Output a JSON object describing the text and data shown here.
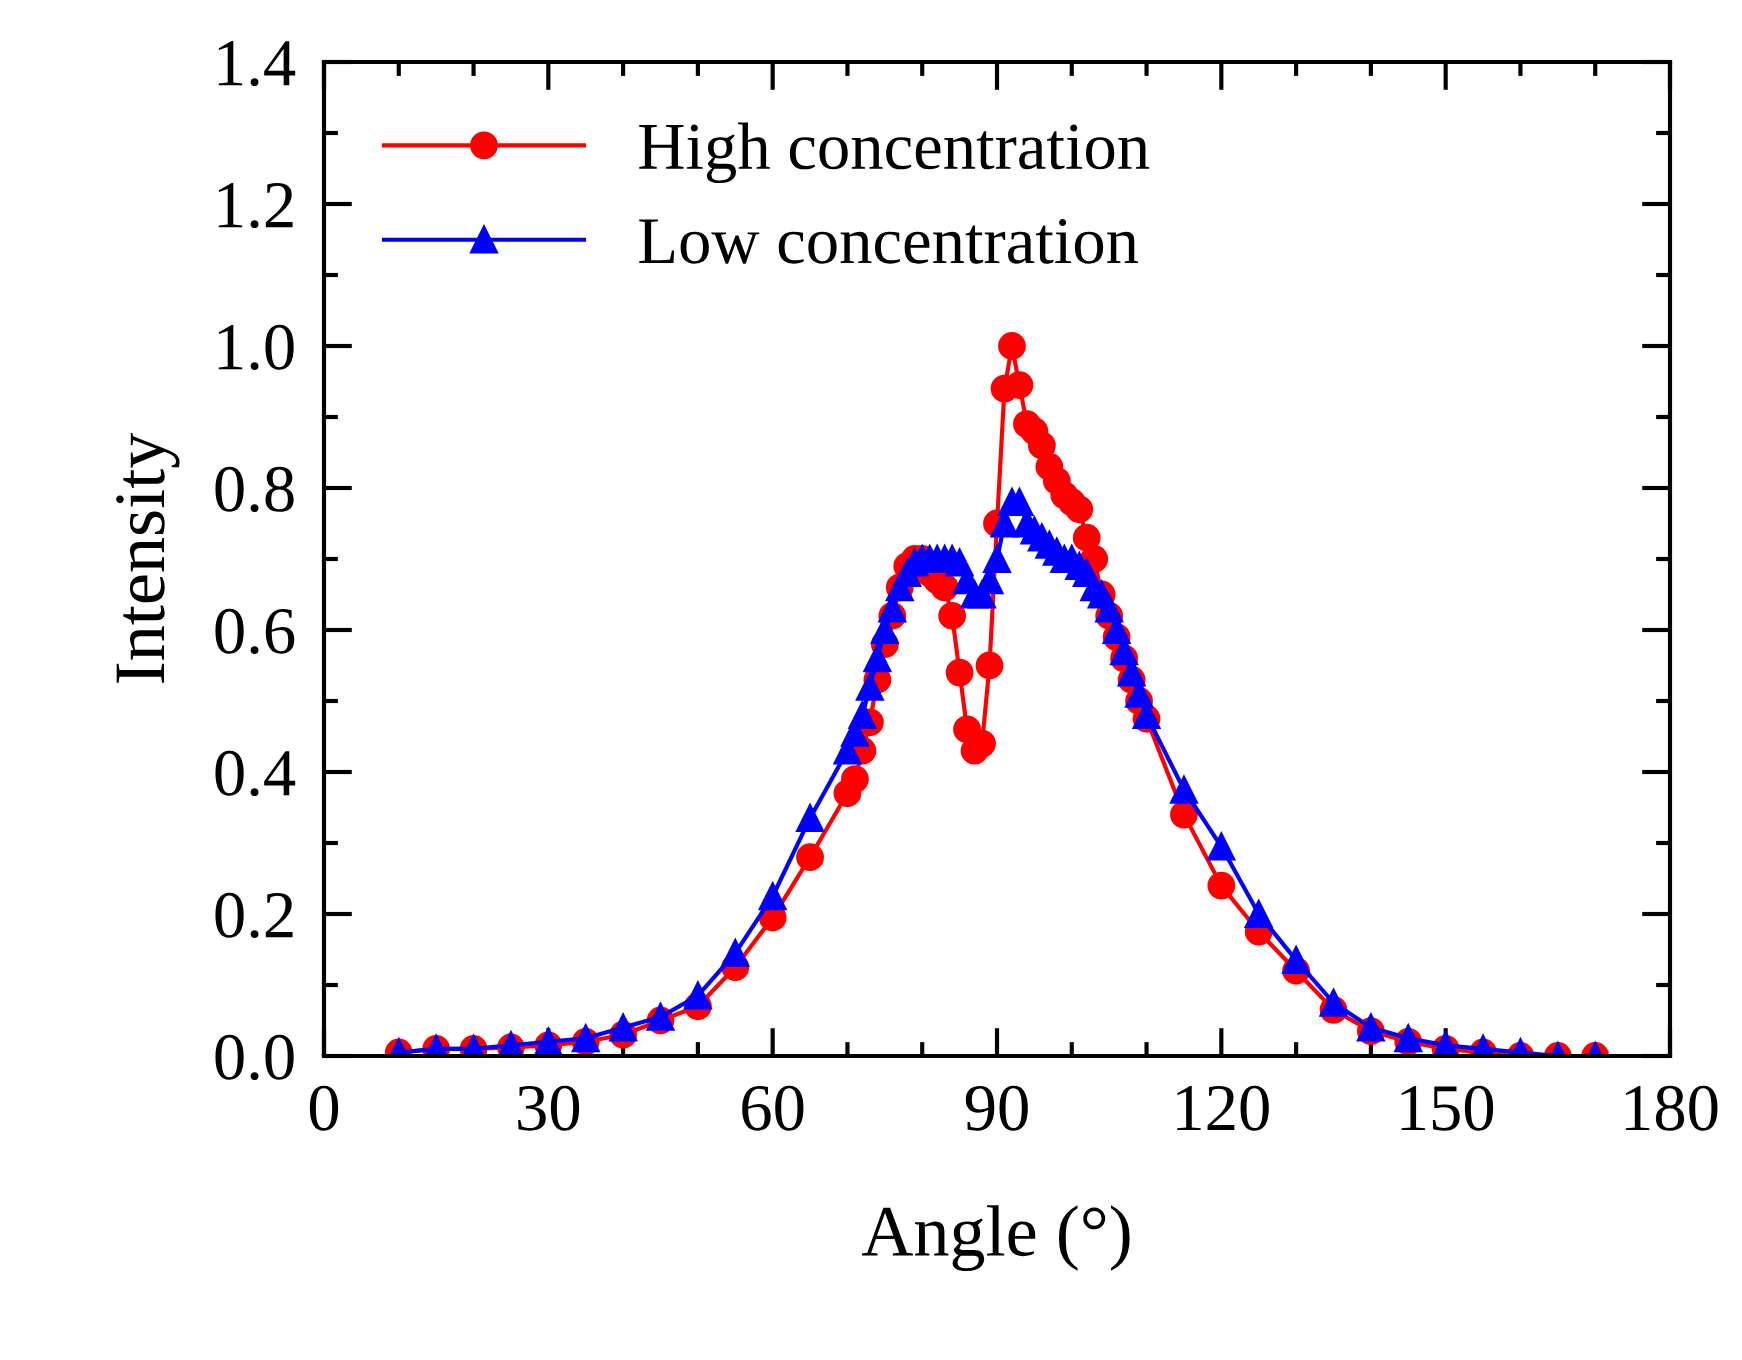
{
  "chart_data": {
    "type": "line",
    "xlabel": "Angle (°)",
    "ylabel": "Intensity",
    "xlim": [
      0,
      180
    ],
    "xticks": [
      0,
      30,
      60,
      90,
      120,
      150,
      180
    ],
    "ylim": [
      0,
      1.4
    ],
    "yticks": [
      {
        "value": 0,
        "label": "0.0"
      },
      0.2,
      0.4,
      0.6,
      0.8,
      {
        "value": 1,
        "label": "1.0"
      },
      1.2,
      1.4
    ],
    "legend": "top left",
    "grid": false,
    "line_style": "solid",
    "x": [
      10,
      15,
      20,
      25,
      30,
      35,
      40,
      45,
      50,
      55,
      60,
      65,
      70,
      71,
      72,
      73,
      74,
      75,
      76,
      77,
      78,
      79,
      80,
      81,
      82,
      83,
      84,
      85,
      86,
      87,
      88,
      89,
      90,
      91,
      92,
      93,
      94,
      95,
      96,
      97,
      98,
      99,
      100,
      101,
      102,
      103,
      104,
      105,
      106,
      107,
      108,
      109,
      110,
      115,
      120,
      125,
      130,
      135,
      140,
      145,
      150,
      155,
      160,
      165,
      170
    ],
    "series": [
      {
        "name": "High concentration",
        "color": "#ff0000",
        "marker": "circle",
        "values": [
          0.005,
          0.01,
          0.01,
          0.012,
          0.015,
          0.02,
          0.03,
          0.05,
          0.07,
          0.125,
          0.195,
          0.28,
          0.37,
          0.39,
          0.43,
          0.47,
          0.53,
          0.58,
          0.62,
          0.66,
          0.69,
          0.7,
          0.7,
          0.68,
          0.67,
          0.66,
          0.62,
          0.54,
          0.46,
          0.43,
          0.44,
          0.55,
          0.75,
          0.94,
          1.0,
          0.945,
          0.89,
          0.88,
          0.86,
          0.83,
          0.81,
          0.79,
          0.78,
          0.77,
          0.73,
          0.7,
          0.65,
          0.62,
          0.59,
          0.56,
          0.53,
          0.5,
          0.475,
          0.34,
          0.24,
          0.175,
          0.12,
          0.065,
          0.035,
          0.02,
          0.01,
          0.005,
          0.0,
          0.0,
          0.0
        ]
      },
      {
        "name": "Low concentration",
        "color": "#0000ff",
        "marker": "triangle",
        "values": [
          0.005,
          0.01,
          0.01,
          0.015,
          0.02,
          0.025,
          0.04,
          0.055,
          0.085,
          0.145,
          0.225,
          0.335,
          0.43,
          0.455,
          0.48,
          0.52,
          0.56,
          0.6,
          0.63,
          0.66,
          0.68,
          0.695,
          0.7,
          0.7,
          0.7,
          0.7,
          0.7,
          0.695,
          0.67,
          0.65,
          0.65,
          0.67,
          0.7,
          0.75,
          0.78,
          0.78,
          0.75,
          0.74,
          0.73,
          0.72,
          0.71,
          0.7,
          0.7,
          0.69,
          0.68,
          0.66,
          0.65,
          0.63,
          0.6,
          0.57,
          0.54,
          0.51,
          0.48,
          0.375,
          0.295,
          0.2,
          0.135,
          0.075,
          0.04,
          0.025,
          0.015,
          0.01,
          0.005,
          0.0,
          0.0
        ]
      }
    ]
  }
}
